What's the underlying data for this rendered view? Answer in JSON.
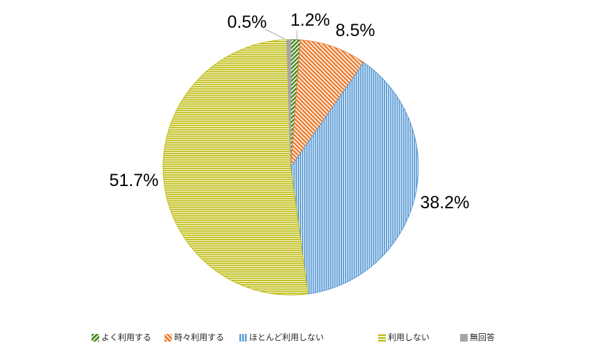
{
  "chart_data": {
    "type": "pie",
    "title": "",
    "start_angle": "top",
    "direction": "clockwise",
    "legend_position": "bottom",
    "background": "#FFFFFF",
    "leader_line_color": "#A6A6A6",
    "label_color": "#000000",
    "slices": [
      {
        "label": "よく利用する",
        "value": 1.2,
        "display": "1.2%",
        "color": "#4C8A23",
        "pattern": "diagonal-up"
      },
      {
        "label": "時々利用する",
        "value": 8.5,
        "display": "8.5%",
        "color": "#ED7D31",
        "pattern": "diagonal-down"
      },
      {
        "label": "ほとんど利用しない",
        "value": 38.2,
        "display": "38.2%",
        "color": "#5B9BD5",
        "pattern": "vertical"
      },
      {
        "label": "利用しない",
        "value": 51.7,
        "display": "51.7%",
        "color": "#C0BE16",
        "pattern": "horizontal"
      },
      {
        "label": "無回答",
        "value": 0.5,
        "display": "0.5%",
        "color": "#A6A6A6",
        "pattern": "solid"
      }
    ]
  }
}
